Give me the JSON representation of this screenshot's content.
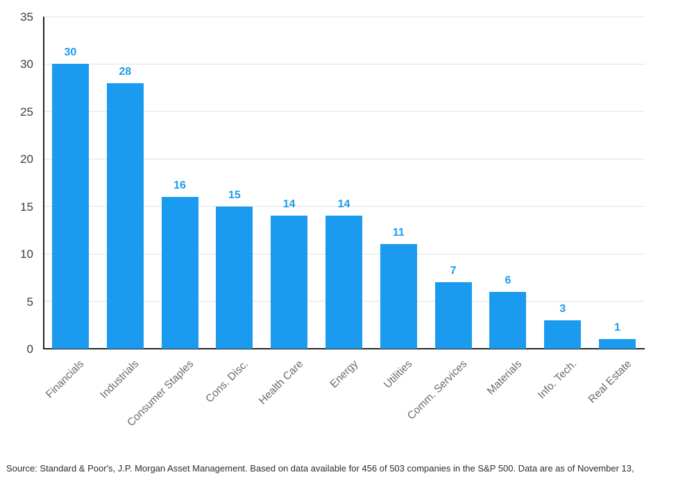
{
  "chart_data": {
    "type": "bar",
    "title": "",
    "categories": [
      "Financials",
      "Industrials",
      "Consumer Staples",
      "Cons. Disc.",
      "Health Care",
      "Energy",
      "Utilities",
      "Comm. Services",
      "Materials",
      "Info. Tech.",
      "Real Estate"
    ],
    "values": [
      30,
      28,
      16,
      15,
      14,
      14,
      11,
      7,
      6,
      3,
      1
    ],
    "xlabel": "",
    "ylabel": "",
    "ylim": [
      0,
      35
    ],
    "yticks": [
      0,
      5,
      10,
      15,
      20,
      25,
      30,
      35
    ],
    "grid": "horizontal",
    "legend": "none",
    "bar_color": "#1b9bf0",
    "value_label_color": "#1b9bf0",
    "axis_color": "#262626",
    "gridline_color": "#e2e2e2",
    "ytick_color": "#3d3d3d",
    "xtick_color": "#6b6b6b"
  },
  "footer": {
    "source_text": "Source: Standard & Poor's, J.P. Morgan Asset Management. Based on data available for 456 of 503 companies in the S&P 500. Data are as of November 13,"
  }
}
